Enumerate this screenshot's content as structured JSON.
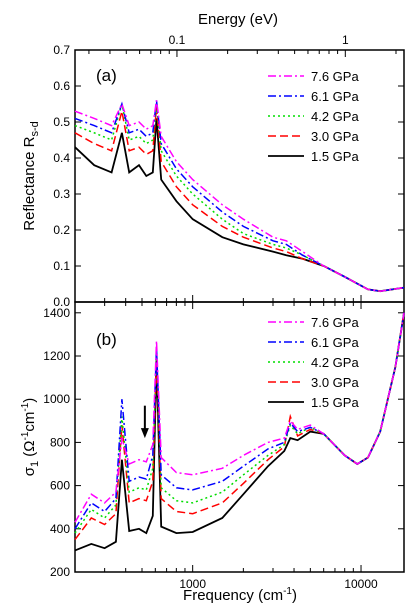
{
  "chart_data": [
    {
      "type": "line",
      "panel_label": "(a)",
      "title": "",
      "top_axis": {
        "label": "Energy (eV)",
        "tick_labels": [
          "0.1",
          "1"
        ],
        "tick_values_ev": [
          0.1,
          1
        ]
      },
      "xlabel": "",
      "ylabel": "Reflectance R",
      "ylabel_subscript": "s-d",
      "xscale": "log",
      "xlim": [
        200,
        18000
      ],
      "ylim": [
        0,
        0.7
      ],
      "yticks": [
        "0.0",
        "0.1",
        "0.2",
        "0.3",
        "0.4",
        "0.5",
        "0.6",
        "0.7"
      ],
      "legend_position": "top-right",
      "series": [
        {
          "name": "7.6 GPa",
          "color": "#ff00ff",
          "dash": "8,3,2,3",
          "points": [
            [
              200,
              0.53
            ],
            [
              260,
              0.51
            ],
            [
              330,
              0.49
            ],
            [
              380,
              0.55
            ],
            [
              420,
              0.49
            ],
            [
              480,
              0.5
            ],
            [
              530,
              0.48
            ],
            [
              580,
              0.49
            ],
            [
              610,
              0.56
            ],
            [
              650,
              0.46
            ],
            [
              800,
              0.39
            ],
            [
              1000,
              0.34
            ],
            [
              1500,
              0.27
            ],
            [
              2000,
              0.23
            ],
            [
              3000,
              0.18
            ],
            [
              3600,
              0.17
            ],
            [
              4500,
              0.14
            ],
            [
              6000,
              0.1
            ],
            [
              8000,
              0.07
            ],
            [
              11000,
              0.035
            ],
            [
              13000,
              0.03
            ],
            [
              18000,
              0.04
            ]
          ]
        },
        {
          "name": "6.1 GPa",
          "color": "#0000ff",
          "dash": "8,3,2,3",
          "points": [
            [
              200,
              0.51
            ],
            [
              260,
              0.49
            ],
            [
              330,
              0.47
            ],
            [
              380,
              0.55
            ],
            [
              420,
              0.47
            ],
            [
              480,
              0.48
            ],
            [
              530,
              0.46
            ],
            [
              580,
              0.47
            ],
            [
              610,
              0.56
            ],
            [
              650,
              0.44
            ],
            [
              800,
              0.37
            ],
            [
              1000,
              0.32
            ],
            [
              1500,
              0.25
            ],
            [
              2000,
              0.21
            ],
            [
              3000,
              0.17
            ],
            [
              3600,
              0.16
            ],
            [
              4500,
              0.13
            ],
            [
              6000,
              0.1
            ],
            [
              8000,
              0.07
            ],
            [
              11000,
              0.035
            ],
            [
              13000,
              0.03
            ],
            [
              18000,
              0.04
            ]
          ]
        },
        {
          "name": "4.2 GPa",
          "color": "#00dd00",
          "dash": "2,3",
          "points": [
            [
              200,
              0.49
            ],
            [
              260,
              0.47
            ],
            [
              330,
              0.45
            ],
            [
              380,
              0.55
            ],
            [
              420,
              0.45
            ],
            [
              480,
              0.46
            ],
            [
              530,
              0.44
            ],
            [
              580,
              0.45
            ],
            [
              610,
              0.55
            ],
            [
              650,
              0.42
            ],
            [
              800,
              0.35
            ],
            [
              1000,
              0.3
            ],
            [
              1500,
              0.23
            ],
            [
              2000,
              0.19
            ],
            [
              3000,
              0.16
            ],
            [
              3600,
              0.15
            ],
            [
              4500,
              0.13
            ],
            [
              6000,
              0.1
            ],
            [
              8000,
              0.07
            ],
            [
              11000,
              0.035
            ],
            [
              13000,
              0.03
            ],
            [
              18000,
              0.04
            ]
          ]
        },
        {
          "name": "3.0 GPa",
          "color": "#ff0000",
          "dash": "8,4",
          "points": [
            [
              200,
              0.47
            ],
            [
              260,
              0.44
            ],
            [
              330,
              0.42
            ],
            [
              380,
              0.53
            ],
            [
              420,
              0.42
            ],
            [
              480,
              0.43
            ],
            [
              530,
              0.41
            ],
            [
              580,
              0.42
            ],
            [
              610,
              0.54
            ],
            [
              650,
              0.39
            ],
            [
              800,
              0.32
            ],
            [
              1000,
              0.27
            ],
            [
              1500,
              0.21
            ],
            [
              2000,
              0.18
            ],
            [
              3000,
              0.15
            ],
            [
              3600,
              0.14
            ],
            [
              4500,
              0.12
            ],
            [
              6000,
              0.1
            ],
            [
              8000,
              0.07
            ],
            [
              11000,
              0.035
            ],
            [
              13000,
              0.03
            ],
            [
              18000,
              0.04
            ]
          ]
        },
        {
          "name": "1.5 GPa",
          "color": "#000000",
          "dash": "",
          "points": [
            [
              200,
              0.43
            ],
            [
              260,
              0.38
            ],
            [
              330,
              0.36
            ],
            [
              380,
              0.47
            ],
            [
              420,
              0.36
            ],
            [
              480,
              0.38
            ],
            [
              530,
              0.35
            ],
            [
              580,
              0.36
            ],
            [
              610,
              0.51
            ],
            [
              650,
              0.34
            ],
            [
              800,
              0.28
            ],
            [
              1000,
              0.23
            ],
            [
              1500,
              0.18
            ],
            [
              2000,
              0.16
            ],
            [
              3000,
              0.14
            ],
            [
              3600,
              0.13
            ],
            [
              4500,
              0.12
            ],
            [
              6000,
              0.1
            ],
            [
              8000,
              0.07
            ],
            [
              11000,
              0.035
            ],
            [
              13000,
              0.03
            ],
            [
              18000,
              0.04
            ]
          ]
        }
      ]
    },
    {
      "type": "line",
      "panel_label": "(b)",
      "title": "",
      "xlabel": "Frequency (cm",
      "xlabel_sup": "-1",
      "xlabel_end": ")",
      "ylabel_parts": [
        "σ",
        "1",
        " (Ω",
        "-1",
        "cm",
        "-1",
        ")"
      ],
      "xscale": "log",
      "xlim": [
        200,
        18000
      ],
      "xtick_labels": [
        "1000",
        "10000"
      ],
      "xtick_values": [
        1000,
        10000
      ],
      "ylim": [
        200,
        1450
      ],
      "yticks": [
        "200",
        "400",
        "600",
        "800",
        "1000",
        "1200",
        "1400"
      ],
      "ytick_values": [
        200,
        400,
        600,
        800,
        1000,
        1200,
        1400
      ],
      "legend_position": "top-right",
      "annotation": {
        "type": "arrow",
        "direction": "down",
        "x": 520,
        "y_from": 970,
        "y_to": 820
      },
      "series": [
        {
          "name": "7.6 GPa",
          "color": "#ff00ff",
          "dash": "8,3,2,3",
          "points": [
            [
              200,
              430
            ],
            [
              250,
              560
            ],
            [
              300,
              520
            ],
            [
              350,
              570
            ],
            [
              380,
              820
            ],
            [
              420,
              700
            ],
            [
              480,
              720
            ],
            [
              530,
              710
            ],
            [
              580,
              790
            ],
            [
              610,
              1270
            ],
            [
              650,
              730
            ],
            [
              800,
              660
            ],
            [
              1000,
              650
            ],
            [
              1500,
              680
            ],
            [
              2000,
              740
            ],
            [
              2800,
              800
            ],
            [
              3500,
              820
            ],
            [
              3800,
              900
            ],
            [
              4200,
              860
            ],
            [
              5000,
              880
            ],
            [
              6000,
              840
            ],
            [
              8000,
              740
            ],
            [
              9500,
              700
            ],
            [
              11000,
              730
            ],
            [
              13000,
              850
            ],
            [
              16000,
              1150
            ],
            [
              18000,
              1400
            ]
          ]
        },
        {
          "name": "6.1 GPa",
          "color": "#0000ff",
          "dash": "8,3,2,3",
          "points": [
            [
              200,
              400
            ],
            [
              250,
              520
            ],
            [
              300,
              480
            ],
            [
              350,
              540
            ],
            [
              380,
              1000
            ],
            [
              420,
              620
            ],
            [
              480,
              640
            ],
            [
              530,
              630
            ],
            [
              580,
              740
            ],
            [
              610,
              1240
            ],
            [
              650,
              650
            ],
            [
              800,
              590
            ],
            [
              1000,
              580
            ],
            [
              1500,
              620
            ],
            [
              2000,
              690
            ],
            [
              2800,
              770
            ],
            [
              3500,
              800
            ],
            [
              3800,
              890
            ],
            [
              4200,
              850
            ],
            [
              5000,
              870
            ],
            [
              6000,
              840
            ],
            [
              8000,
              740
            ],
            [
              9500,
              700
            ],
            [
              11000,
              730
            ],
            [
              13000,
              850
            ],
            [
              16000,
              1150
            ],
            [
              18000,
              1400
            ]
          ]
        },
        {
          "name": "4.2 GPa",
          "color": "#00dd00",
          "dash": "2,3",
          "points": [
            [
              200,
              380
            ],
            [
              250,
              490
            ],
            [
              300,
              450
            ],
            [
              350,
              510
            ],
            [
              380,
              920
            ],
            [
              420,
              570
            ],
            [
              480,
              590
            ],
            [
              530,
              580
            ],
            [
              580,
              680
            ],
            [
              610,
              1220
            ],
            [
              650,
              590
            ],
            [
              800,
              530
            ],
            [
              1000,
              520
            ],
            [
              1500,
              570
            ],
            [
              2000,
              650
            ],
            [
              2800,
              740
            ],
            [
              3500,
              790
            ],
            [
              3800,
              880
            ],
            [
              4200,
              840
            ],
            [
              5000,
              870
            ],
            [
              6000,
              840
            ],
            [
              8000,
              740
            ],
            [
              9500,
              700
            ],
            [
              11000,
              730
            ],
            [
              13000,
              850
            ],
            [
              16000,
              1150
            ],
            [
              18000,
              1400
            ]
          ]
        },
        {
          "name": "3.0 GPa",
          "color": "#ff0000",
          "dash": "8,4",
          "points": [
            [
              200,
              350
            ],
            [
              250,
              450
            ],
            [
              300,
              420
            ],
            [
              350,
              470
            ],
            [
              380,
              880
            ],
            [
              420,
              520
            ],
            [
              480,
              540
            ],
            [
              530,
              530
            ],
            [
              580,
              620
            ],
            [
              610,
              1200
            ],
            [
              650,
              540
            ],
            [
              800,
              480
            ],
            [
              1000,
              470
            ],
            [
              1500,
              520
            ],
            [
              2000,
              610
            ],
            [
              2800,
              720
            ],
            [
              3500,
              780
            ],
            [
              3800,
              920
            ],
            [
              4200,
              830
            ],
            [
              5000,
              860
            ],
            [
              6000,
              840
            ],
            [
              8000,
              740
            ],
            [
              9500,
              700
            ],
            [
              11000,
              730
            ],
            [
              13000,
              850
            ],
            [
              16000,
              1150
            ],
            [
              18000,
              1400
            ]
          ]
        },
        {
          "name": "1.5 GPa",
          "color": "#000000",
          "dash": "",
          "points": [
            [
              200,
              300
            ],
            [
              250,
              330
            ],
            [
              300,
              310
            ],
            [
              350,
              340
            ],
            [
              380,
              720
            ],
            [
              420,
              390
            ],
            [
              480,
              400
            ],
            [
              530,
              380
            ],
            [
              580,
              460
            ],
            [
              610,
              1180
            ],
            [
              650,
              410
            ],
            [
              800,
              380
            ],
            [
              1000,
              385
            ],
            [
              1500,
              450
            ],
            [
              2000,
              560
            ],
            [
              2800,
              690
            ],
            [
              3500,
              760
            ],
            [
              3800,
              820
            ],
            [
              4200,
              810
            ],
            [
              5000,
              850
            ],
            [
              6000,
              840
            ],
            [
              8000,
              740
            ],
            [
              9500,
              700
            ],
            [
              11000,
              730
            ],
            [
              13000,
              850
            ],
            [
              16000,
              1150
            ],
            [
              18000,
              1400
            ]
          ]
        }
      ]
    }
  ]
}
